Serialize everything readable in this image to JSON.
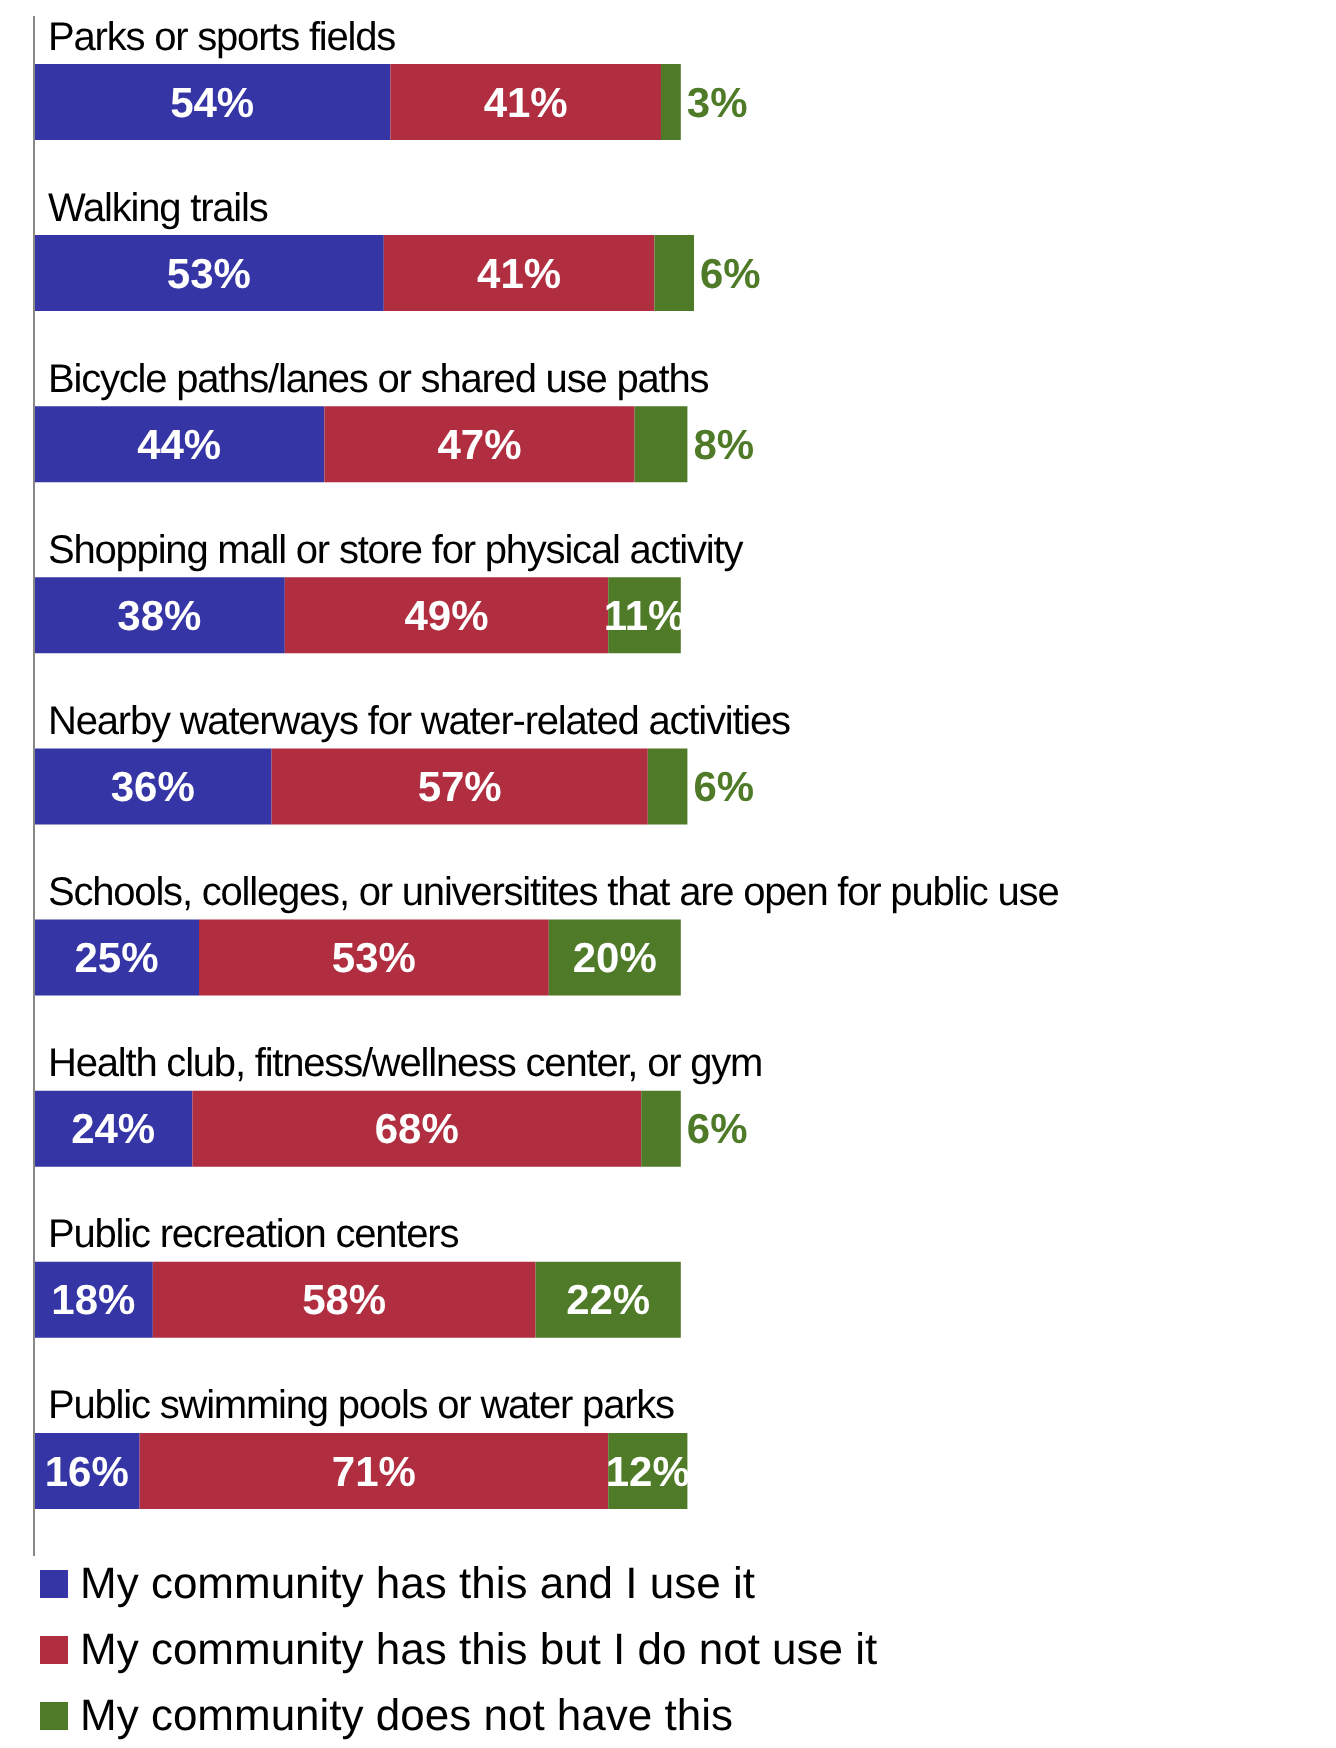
{
  "chart_data": {
    "type": "bar",
    "orientation": "horizontal",
    "stacked": true,
    "legend": "bottom",
    "tick_labels": "y",
    "xlim": [
      0,
      100
    ],
    "categories": [
      "Parks or sports fields",
      "Walking trails",
      "Bicycle paths/lanes or shared use paths",
      "Shopping mall or store for physical activity",
      "Nearby waterways for water-related activities",
      "Schools, colleges, or universitites that are open for public use",
      "Health club, fitness/wellness center, or gym",
      "Public recreation centers",
      "Public swimming pools or water parks"
    ],
    "series": [
      {
        "name": "My community has this and I use it",
        "color": "#3535a6",
        "values": [
          54,
          53,
          44,
          38,
          36,
          25,
          24,
          18,
          16
        ],
        "value_labels": [
          "54%",
          "53%",
          "44%",
          "38%",
          "36%",
          "25%",
          "24%",
          "18%",
          "16%"
        ]
      },
      {
        "name": "My community has this but I do not use it",
        "color": "#b02e40",
        "values": [
          41,
          41,
          47,
          49,
          57,
          53,
          68,
          58,
          71
        ],
        "value_labels": [
          "41%",
          "41%",
          "47%",
          "49%",
          "57%",
          "53%",
          "68%",
          "58%",
          "71%"
        ]
      },
      {
        "name": "My community does not have this",
        "color": "#4f7a28",
        "values": [
          3,
          6,
          8,
          11,
          6,
          20,
          6,
          22,
          12
        ],
        "value_labels": [
          "3%",
          "6%",
          "8%",
          "11%",
          "6%",
          "20%",
          "6%",
          "22%",
          "12%"
        ]
      }
    ]
  }
}
